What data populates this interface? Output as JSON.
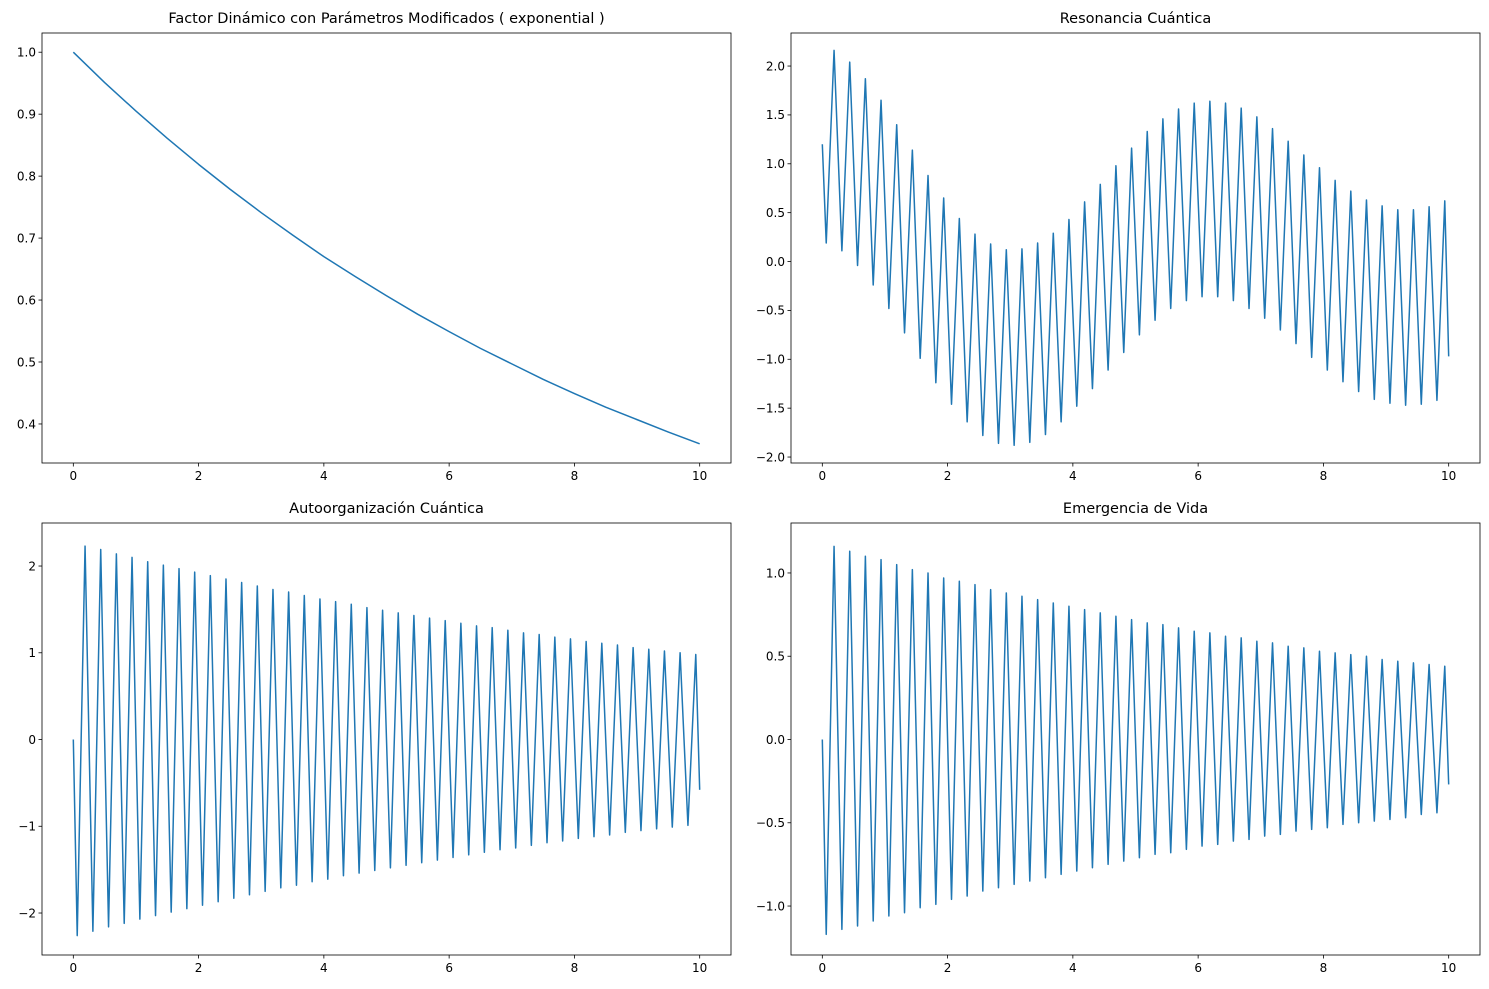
{
  "chart_data": [
    {
      "type": "line",
      "title": "Factor Dinámico con Parámetros Modificados ( exponential )",
      "color": "#1f77b4",
      "x": [
        0,
        0.5,
        1,
        1.5,
        2,
        2.5,
        3,
        3.5,
        4,
        4.5,
        5,
        5.5,
        6,
        6.5,
        7,
        7.5,
        8,
        8.5,
        9,
        9.5,
        10
      ],
      "values": [
        1,
        0.951,
        0.905,
        0.861,
        0.819,
        0.779,
        0.741,
        0.705,
        0.67,
        0.638,
        0.607,
        0.577,
        0.549,
        0.522,
        0.497,
        0.472,
        0.449,
        0.427,
        0.407,
        0.387,
        0.368
      ],
      "xlim": [
        -0.5,
        10.5
      ],
      "ylim": [
        0.337,
        1.031
      ],
      "xticks": [
        0,
        2,
        4,
        6,
        8,
        10
      ],
      "yticks": [
        0.4,
        0.5,
        0.6,
        0.7,
        0.8,
        0.9,
        {
          "value": 1,
          "label": "1.0"
        }
      ]
    },
    {
      "type": "line",
      "title": "Resonancia Cuántica",
      "color": "#1f77b4",
      "x": [
        0,
        0.0625,
        0.125,
        0.1875,
        0.25,
        0.3125,
        0.375,
        0.4375,
        0.5,
        0.5625,
        0.625,
        0.6875,
        0.75,
        0.8125,
        0.875,
        0.9375,
        1,
        1.0625,
        1.125,
        1.1875,
        1.25,
        1.3125,
        1.375,
        1.4375,
        1.5,
        1.5625,
        1.625,
        1.6875,
        1.75,
        1.8125,
        1.875,
        1.9375,
        2,
        2.0625,
        2.125,
        2.1875,
        2.25,
        2.3125,
        2.375,
        2.4375,
        2.5,
        2.5625,
        2.625,
        2.6875,
        2.75,
        2.8125,
        2.875,
        2.9375,
        3,
        3.0625,
        3.125,
        3.1875,
        3.25,
        3.3125,
        3.375,
        3.4375,
        3.5,
        3.5625,
        3.625,
        3.6875,
        3.75,
        3.8125,
        3.875,
        3.9375,
        4,
        4.0625,
        4.125,
        4.1875,
        4.25,
        4.3125,
        4.375,
        4.4375,
        4.5,
        4.5625,
        4.625,
        4.6875,
        4.75,
        4.8125,
        4.875,
        4.9375,
        5,
        5.0625,
        5.125,
        5.1875,
        5.25,
        5.3125,
        5.375,
        5.4375,
        5.5,
        5.5625,
        5.625,
        5.6875,
        5.75,
        5.8125,
        5.875,
        5.9375,
        6,
        6.0625,
        6.125,
        6.1875,
        6.25,
        6.3125,
        6.375,
        6.4375,
        6.5,
        6.5625,
        6.625,
        6.6875,
        6.75,
        6.8125,
        6.875,
        6.9375,
        7,
        7.0625,
        7.125,
        7.1875,
        7.25,
        7.3125,
        7.375,
        7.4375,
        7.5,
        7.5625,
        7.625,
        7.6875,
        7.75,
        7.8125,
        7.875,
        7.9375,
        8,
        8.0625,
        8.125,
        8.1875,
        8.25,
        8.3125,
        8.375,
        8.4375,
        8.5,
        8.5625,
        8.625,
        8.6875,
        8.75,
        8.8125,
        8.875,
        8.9375,
        9,
        9.0625,
        9.125,
        9.1875,
        9.25,
        9.3125,
        9.375,
        9.4375,
        9.5,
        9.5625,
        9.625,
        9.6875,
        9.75,
        9.8125,
        9.875,
        9.9375,
        10
      ],
      "values": [
        1.2,
        0.19,
        1.18,
        2.16,
        1.13,
        0.11,
        1.08,
        2.04,
        1,
        -0.04,
        0.91,
        1.87,
        0.82,
        -0.24,
        0.71,
        1.65,
        0.59,
        -0.48,
        0.46,
        1.4,
        0.33,
        -0.73,
        0.2,
        1.14,
        0.07,
        -0.99,
        -0.06,
        0.88,
        -0.18,
        -1.24,
        -0.3,
        0.65,
        -0.41,
        -1.46,
        -0.51,
        0.44,
        -0.6,
        -1.64,
        -0.68,
        0.28,
        -0.75,
        -1.78,
        -0.8,
        0.18,
        -0.84,
        -1.86,
        -0.87,
        0.12,
        -0.88,
        -1.88,
        -0.88,
        0.13,
        -0.86,
        -1.85,
        -0.83,
        0.19,
        -0.79,
        -1.77,
        -0.74,
        0.29,
        -0.68,
        -1.64,
        -0.61,
        0.43,
        -0.53,
        -1.48,
        -0.44,
        0.61,
        -0.35,
        -1.3,
        -0.26,
        0.79,
        -0.16,
        -1.11,
        -0.07,
        0.98,
        0.03,
        -0.93,
        0.12,
        1.16,
        0.21,
        -0.75,
        0.29,
        1.33,
        0.36,
        -0.6,
        0.43,
        1.46,
        0.49,
        -0.48,
        0.54,
        1.56,
        0.58,
        -0.4,
        0.61,
        1.62,
        0.63,
        -0.36,
        0.64,
        1.64,
        0.64,
        -0.36,
        0.63,
        1.62,
        0.61,
        -0.4,
        0.58,
        1.57,
        0.55,
        -0.48,
        0.5,
        1.48,
        0.45,
        -0.58,
        0.39,
        1.36,
        0.33,
        -0.7,
        0.27,
        1.23,
        0.2,
        -0.84,
        0.13,
        1.09,
        0.06,
        -0.98,
        -0.01,
        0.96,
        -0.08,
        -1.11,
        -0.14,
        0.83,
        -0.2,
        -1.23,
        -0.26,
        0.72,
        -0.31,
        -1.33,
        -0.35,
        0.63,
        -0.39,
        -1.41,
        -0.42,
        0.57,
        -0.45,
        -1.45,
        -0.46,
        0.53,
        -0.47,
        -1.47,
        -0.47,
        0.53,
        -0.46,
        -1.46,
        -0.45,
        0.56,
        -0.43,
        -1.42,
        -0.4,
        0.62,
        -0.97
      ],
      "xlim": [
        -0.5,
        10.5
      ],
      "ylim": [
        -2.061,
        2.338
      ],
      "xticks": [
        0,
        2,
        4,
        6,
        8,
        10
      ],
      "yticks": [
        {
          "value": -2,
          "label": "−2.0"
        },
        {
          "value": -1.5,
          "label": "−1.5"
        },
        {
          "value": -1,
          "label": "−1.0"
        },
        {
          "value": -0.5,
          "label": "−0.5"
        },
        {
          "value": 0,
          "label": "0.0"
        },
        0.5,
        {
          "value": 1,
          "label": "1.0"
        },
        1.5,
        {
          "value": 2,
          "label": "2.0"
        }
      ]
    },
    {
      "type": "line",
      "title": "Autoorganización Cuántica",
      "color": "#1f77b4",
      "x": [
        0,
        0.0625,
        0.125,
        0.1875,
        0.25,
        0.3125,
        0.375,
        0.4375,
        0.5,
        0.5625,
        0.625,
        0.6875,
        0.75,
        0.8125,
        0.875,
        0.9375,
        1,
        1.0625,
        1.125,
        1.1875,
        1.25,
        1.3125,
        1.375,
        1.4375,
        1.5,
        1.5625,
        1.625,
        1.6875,
        1.75,
        1.8125,
        1.875,
        1.9375,
        2,
        2.0625,
        2.125,
        2.1875,
        2.25,
        2.3125,
        2.375,
        2.4375,
        2.5,
        2.5625,
        2.625,
        2.6875,
        2.75,
        2.8125,
        2.875,
        2.9375,
        3,
        3.0625,
        3.125,
        3.1875,
        3.25,
        3.3125,
        3.375,
        3.4375,
        3.5,
        3.5625,
        3.625,
        3.6875,
        3.75,
        3.8125,
        3.875,
        3.9375,
        4,
        4.0625,
        4.125,
        4.1875,
        4.25,
        4.3125,
        4.375,
        4.4375,
        4.5,
        4.5625,
        4.625,
        4.6875,
        4.75,
        4.8125,
        4.875,
        4.9375,
        5,
        5.0625,
        5.125,
        5.1875,
        5.25,
        5.3125,
        5.375,
        5.4375,
        5.5,
        5.5625,
        5.625,
        5.6875,
        5.75,
        5.8125,
        5.875,
        5.9375,
        6,
        6.0625,
        6.125,
        6.1875,
        6.25,
        6.3125,
        6.375,
        6.4375,
        6.5,
        6.5625,
        6.625,
        6.6875,
        6.75,
        6.8125,
        6.875,
        6.9375,
        7,
        7.0625,
        7.125,
        7.1875,
        7.25,
        7.3125,
        7.375,
        7.4375,
        7.5,
        7.5625,
        7.625,
        7.6875,
        7.75,
        7.8125,
        7.875,
        7.9375,
        8,
        8.0625,
        8.125,
        8.1875,
        8.25,
        8.3125,
        8.375,
        8.4375,
        8.5,
        8.5625,
        8.625,
        8.6875,
        8.75,
        8.8125,
        8.875,
        8.9375,
        9,
        9.0625,
        9.125,
        9.1875,
        9.25,
        9.3125,
        9.375,
        9.4375,
        9.5,
        9.5625,
        9.625,
        9.6875,
        9.75,
        9.8125,
        9.875,
        9.9375,
        10
      ],
      "values": [
        0,
        -2.26,
        0,
        2.23,
        0,
        -2.21,
        0,
        2.19,
        0,
        -2.16,
        0,
        2.14,
        0,
        -2.12,
        0,
        2.1,
        0,
        -2.07,
        0,
        2.05,
        0,
        -2.03,
        0,
        2.01,
        0,
        -1.99,
        0,
        1.97,
        0,
        -1.95,
        0,
        1.93,
        0,
        -1.91,
        0,
        1.89,
        0,
        -1.87,
        0,
        1.85,
        0,
        -1.83,
        0,
        1.81,
        0,
        -1.79,
        0,
        1.77,
        0,
        -1.75,
        0,
        1.73,
        0,
        -1.71,
        0,
        1.7,
        0,
        -1.68,
        0,
        1.66,
        0,
        -1.64,
        0,
        1.62,
        0,
        -1.61,
        0,
        1.59,
        0,
        -1.57,
        0,
        1.56,
        0,
        -1.54,
        0,
        1.52,
        0,
        -1.51,
        0,
        1.49,
        0,
        -1.48,
        0,
        1.46,
        0,
        -1.45,
        0,
        1.43,
        0,
        -1.42,
        0,
        1.4,
        0,
        -1.39,
        0,
        1.37,
        0,
        -1.36,
        0,
        1.34,
        0,
        -1.33,
        0,
        1.31,
        0,
        -1.3,
        0,
        1.29,
        0,
        -1.27,
        0,
        1.26,
        0,
        -1.25,
        0,
        1.23,
        0,
        -1.22,
        0,
        1.21,
        0,
        -1.19,
        0,
        1.18,
        0,
        -1.17,
        0,
        1.16,
        0,
        -1.14,
        0,
        1.13,
        0,
        -1.12,
        0,
        1.11,
        0,
        -1.1,
        0,
        1.09,
        0,
        -1.07,
        0,
        1.06,
        0,
        -1.05,
        0,
        1.04,
        0,
        -1.03,
        0,
        1.02,
        0,
        -1.01,
        0,
        1,
        0,
        -0.99,
        0,
        0.98,
        -0.58
      ],
      "xlim": [
        -0.5,
        10.5
      ],
      "ylim": [
        -2.484,
        2.496
      ],
      "xticks": [
        0,
        2,
        4,
        6,
        8,
        10
      ],
      "yticks": [
        {
          "value": -2,
          "label": "−2"
        },
        {
          "value": -1,
          "label": "−1"
        },
        0,
        1,
        2
      ]
    },
    {
      "type": "line",
      "title": "Emergencia de Vida",
      "color": "#1f77b4",
      "x": [
        0,
        0.0625,
        0.125,
        0.1875,
        0.25,
        0.3125,
        0.375,
        0.4375,
        0.5,
        0.5625,
        0.625,
        0.6875,
        0.75,
        0.8125,
        0.875,
        0.9375,
        1,
        1.0625,
        1.125,
        1.1875,
        1.25,
        1.3125,
        1.375,
        1.4375,
        1.5,
        1.5625,
        1.625,
        1.6875,
        1.75,
        1.8125,
        1.875,
        1.9375,
        2,
        2.0625,
        2.125,
        2.1875,
        2.25,
        2.3125,
        2.375,
        2.4375,
        2.5,
        2.5625,
        2.625,
        2.6875,
        2.75,
        2.8125,
        2.875,
        2.9375,
        3,
        3.0625,
        3.125,
        3.1875,
        3.25,
        3.3125,
        3.375,
        3.4375,
        3.5,
        3.5625,
        3.625,
        3.6875,
        3.75,
        3.8125,
        3.875,
        3.9375,
        4,
        4.0625,
        4.125,
        4.1875,
        4.25,
        4.3125,
        4.375,
        4.4375,
        4.5,
        4.5625,
        4.625,
        4.6875,
        4.75,
        4.8125,
        4.875,
        4.9375,
        5,
        5.0625,
        5.125,
        5.1875,
        5.25,
        5.3125,
        5.375,
        5.4375,
        5.5,
        5.5625,
        5.625,
        5.6875,
        5.75,
        5.8125,
        5.875,
        5.9375,
        6,
        6.0625,
        6.125,
        6.1875,
        6.25,
        6.3125,
        6.375,
        6.4375,
        6.5,
        6.5625,
        6.625,
        6.6875,
        6.75,
        6.8125,
        6.875,
        6.9375,
        7,
        7.0625,
        7.125,
        7.1875,
        7.25,
        7.3125,
        7.375,
        7.4375,
        7.5,
        7.5625,
        7.625,
        7.6875,
        7.75,
        7.8125,
        7.875,
        7.9375,
        8,
        8.0625,
        8.125,
        8.1875,
        8.25,
        8.3125,
        8.375,
        8.4375,
        8.5,
        8.5625,
        8.625,
        8.6875,
        8.75,
        8.8125,
        8.875,
        8.9375,
        9,
        9.0625,
        9.125,
        9.1875,
        9.25,
        9.3125,
        9.375,
        9.4375,
        9.5,
        9.5625,
        9.625,
        9.6875,
        9.75,
        9.8125,
        9.875,
        9.9375,
        10
      ],
      "values": [
        0,
        -1.17,
        0,
        1.16,
        0,
        -1.14,
        0,
        1.13,
        0,
        -1.12,
        0,
        1.1,
        0,
        -1.09,
        0,
        1.08,
        0,
        -1.06,
        0,
        1.05,
        0,
        -1.04,
        0,
        1.02,
        0,
        -1.01,
        0,
        1,
        0,
        -0.99,
        0,
        0.97,
        0,
        -0.96,
        0,
        0.95,
        0,
        -0.94,
        0,
        0.93,
        0,
        -0.91,
        0,
        0.9,
        0,
        -0.89,
        0,
        0.88,
        0,
        -0.87,
        0,
        0.86,
        0,
        -0.85,
        0,
        0.84,
        0,
        -0.83,
        0,
        0.82,
        0,
        -0.81,
        0,
        0.8,
        0,
        -0.79,
        0,
        0.78,
        0,
        -0.77,
        0,
        0.76,
        0,
        -0.75,
        0,
        0.74,
        0,
        -0.73,
        0,
        0.72,
        0,
        -0.71,
        0,
        0.7,
        0,
        -0.69,
        0,
        0.69,
        0,
        -0.68,
        0,
        0.67,
        0,
        -0.66,
        0,
        0.65,
        0,
        -0.64,
        0,
        0.64,
        0,
        -0.63,
        0,
        0.62,
        0,
        -0.61,
        0,
        0.61,
        0,
        -0.6,
        0,
        0.59,
        0,
        -0.58,
        0,
        0.58,
        0,
        -0.57,
        0,
        0.56,
        0,
        -0.55,
        0,
        0.55,
        0,
        -0.54,
        0,
        0.53,
        0,
        -0.53,
        0,
        0.52,
        0,
        -0.51,
        0,
        0.51,
        0,
        -0.5,
        0,
        0.5,
        0,
        -0.49,
        0,
        0.48,
        0,
        -0.48,
        0,
        0.47,
        0,
        -0.47,
        0,
        0.46,
        0,
        -0.45,
        0,
        0.45,
        0,
        -0.44,
        0,
        0.44,
        -0.27
      ],
      "xlim": [
        -0.5,
        10.5
      ],
      "ylim": [
        -1.294,
        1.3
      ],
      "xticks": [
        0,
        2,
        4,
        6,
        8,
        10
      ],
      "yticks": [
        {
          "value": -1,
          "label": "−1.0"
        },
        {
          "value": -0.5,
          "label": "−0.5"
        },
        {
          "value": 0,
          "label": "0.0"
        },
        0.5,
        {
          "value": 1,
          "label": "1.0"
        }
      ]
    }
  ]
}
